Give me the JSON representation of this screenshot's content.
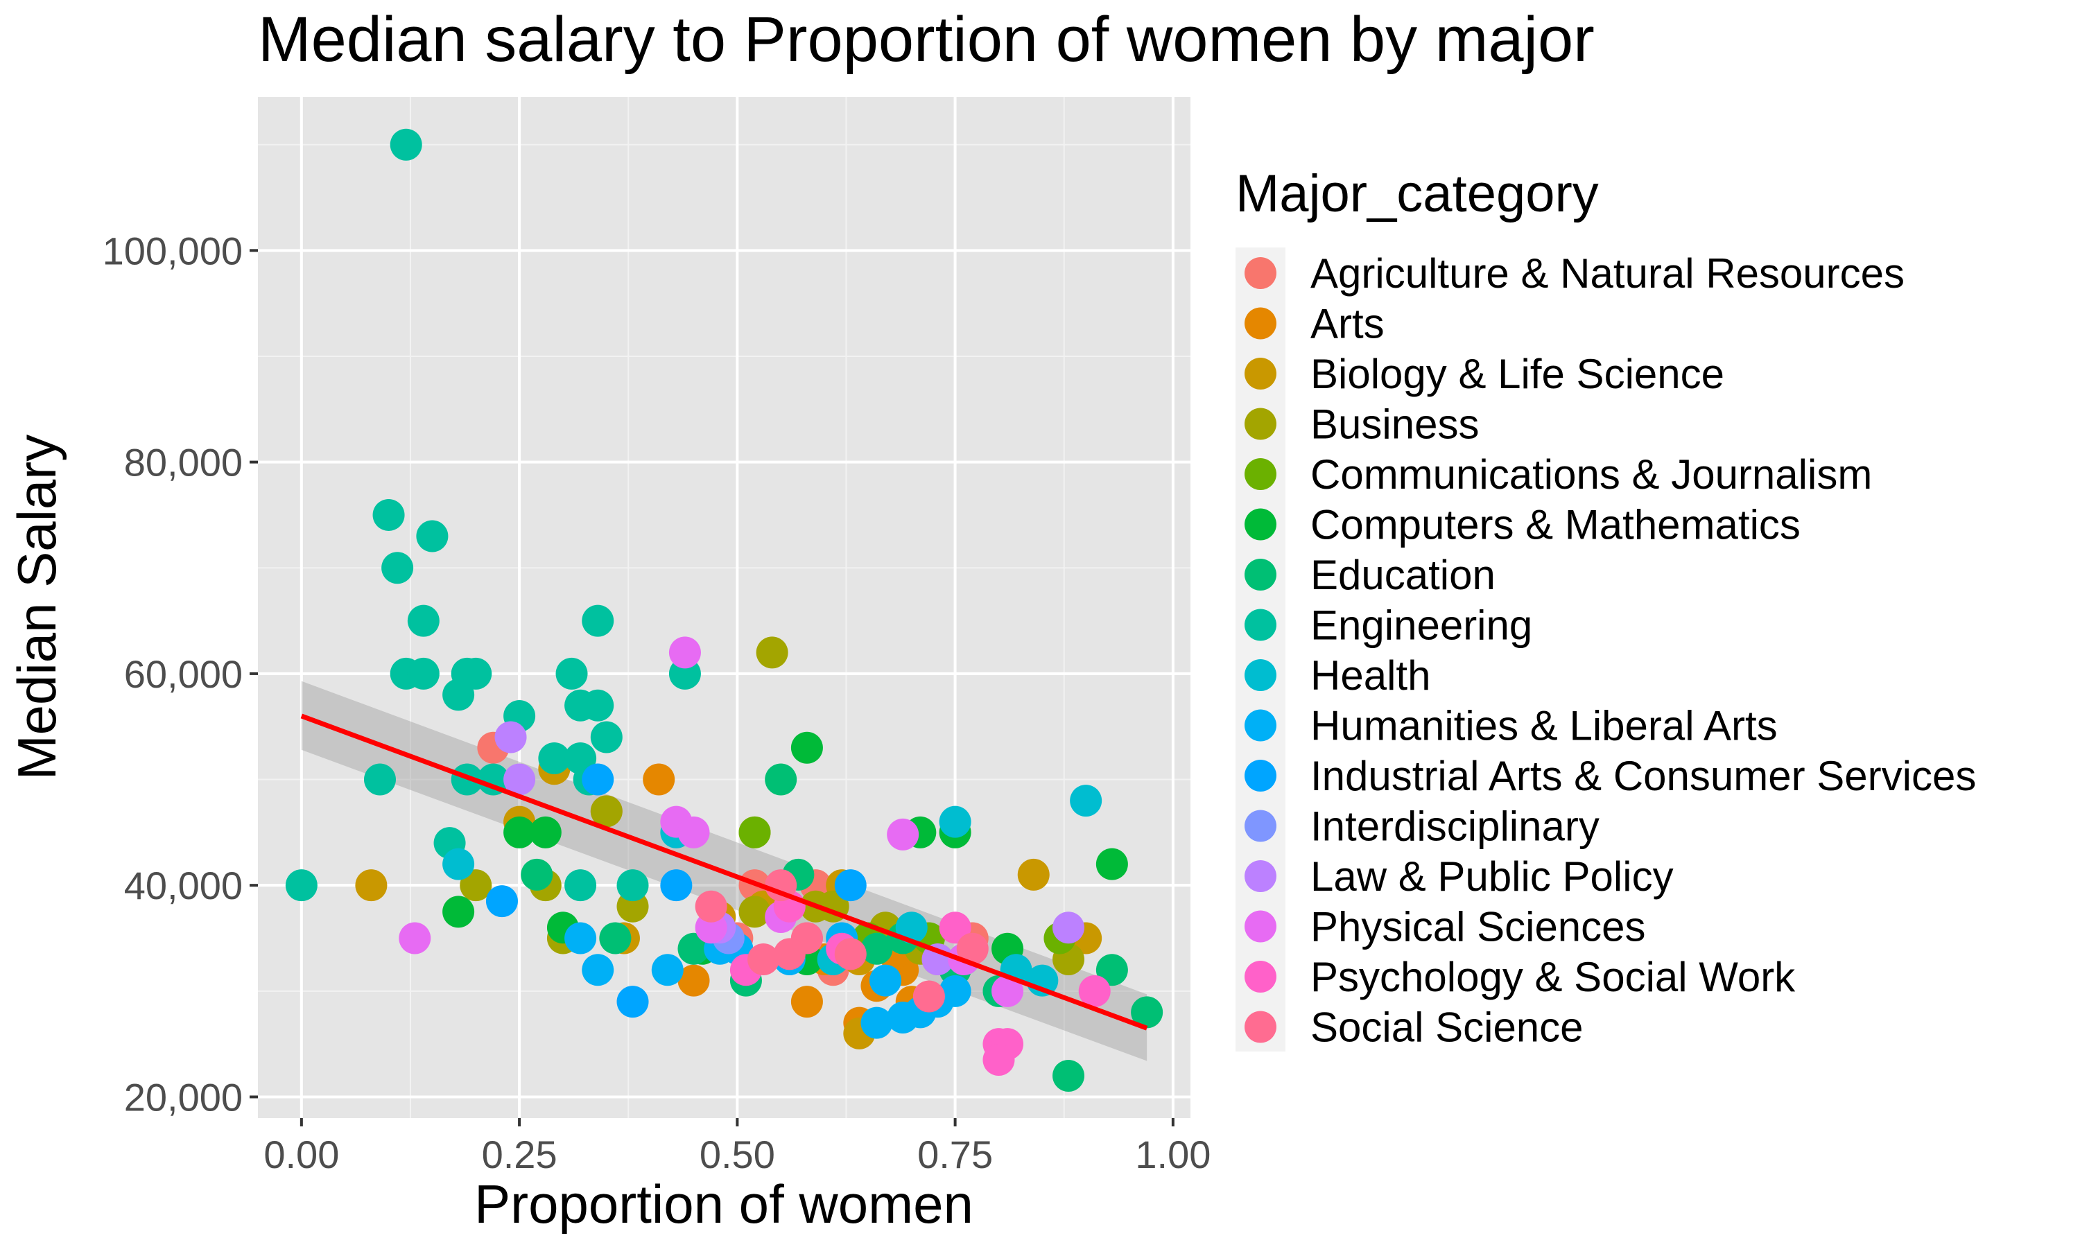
{
  "chart_data": {
    "type": "scatter",
    "title": "Median salary to Proportion of women by major",
    "xlabel": "Proportion of women",
    "ylabel": "Median Salary",
    "xlim": [
      -0.05,
      1.02
    ],
    "ylim": [
      18000,
      114500
    ],
    "x_ticks": [
      0,
      0.25,
      0.5,
      0.75,
      1.0
    ],
    "x_tick_labels": [
      "0.00",
      "0.25",
      "0.50",
      "0.75",
      "1.00"
    ],
    "y_ticks": [
      20000,
      40000,
      60000,
      80000,
      100000
    ],
    "y_tick_labels": [
      "20,000",
      "40,000",
      "60,000",
      "80,000",
      "100,000"
    ],
    "grid": true,
    "panel_background": "#e5e5e5",
    "legend": {
      "title": "Major_category",
      "placement": "right"
    },
    "series": [
      {
        "name": "Agriculture & Natural Resources",
        "color": "#F8766D",
        "points": [
          [
            0.22,
            53000
          ],
          [
            0.52,
            40000
          ],
          [
            0.59,
            40000
          ],
          [
            0.58,
            35000
          ],
          [
            0.73,
            33000
          ],
          [
            0.61,
            32000
          ],
          [
            0.77,
            35000
          ],
          [
            0.35,
            47000
          ],
          [
            0.5,
            35000
          ]
        ]
      },
      {
        "name": "Arts",
        "color": "#E58700",
        "points": [
          [
            0.41,
            50000
          ],
          [
            0.45,
            31000
          ],
          [
            0.58,
            29000
          ],
          [
            0.64,
            27000
          ],
          [
            0.66,
            30500
          ],
          [
            0.69,
            32000
          ],
          [
            0.7,
            29000
          ],
          [
            0.6,
            33000
          ],
          [
            0.68,
            33500
          ]
        ]
      },
      {
        "name": "Biology & Life Science",
        "color": "#C99800",
        "points": [
          [
            0.08,
            40000
          ],
          [
            0.37,
            35000
          ],
          [
            0.52,
            45000
          ],
          [
            0.62,
            40000
          ],
          [
            0.64,
            33000
          ],
          [
            0.84,
            41000
          ],
          [
            0.9,
            35000
          ],
          [
            0.53,
            38000
          ],
          [
            0.48,
            37000
          ],
          [
            0.64,
            26000
          ],
          [
            0.25,
            46000
          ],
          [
            0.29,
            51000
          ]
        ]
      },
      {
        "name": "Business",
        "color": "#A3A500",
        "points": [
          [
            0.54,
            62000
          ],
          [
            0.35,
            47000
          ],
          [
            0.38,
            38000
          ],
          [
            0.2,
            40000
          ],
          [
            0.28,
            40000
          ],
          [
            0.59,
            38000
          ],
          [
            0.67,
            36000
          ],
          [
            0.71,
            34000
          ],
          [
            0.88,
            33000
          ],
          [
            0.52,
            37500
          ],
          [
            0.61,
            38000
          ],
          [
            0.3,
            35000
          ],
          [
            0.48,
            35500
          ]
        ]
      },
      {
        "name": "Communications & Journalism",
        "color": "#6BB100",
        "points": [
          [
            0.52,
            45000
          ],
          [
            0.65,
            35000
          ],
          [
            0.72,
            35000
          ],
          [
            0.87,
            35000
          ]
        ]
      },
      {
        "name": "Computers & Mathematics",
        "color": "#00BA38",
        "points": [
          [
            0.58,
            53000
          ],
          [
            0.71,
            45000
          ],
          [
            0.75,
            45000
          ],
          [
            0.93,
            42000
          ],
          [
            0.18,
            37500
          ],
          [
            0.3,
            36000
          ],
          [
            0.46,
            34000
          ],
          [
            0.58,
            33000
          ],
          [
            0.81,
            34000
          ],
          [
            0.25,
            45000
          ],
          [
            0.28,
            45000
          ]
        ]
      },
      {
        "name": "Education",
        "color": "#00BF74",
        "points": [
          [
            0.27,
            41000
          ],
          [
            0.36,
            35000
          ],
          [
            0.45,
            34000
          ],
          [
            0.51,
            31000
          ],
          [
            0.57,
            41000
          ],
          [
            0.66,
            34000
          ],
          [
            0.75,
            32000
          ],
          [
            0.8,
            30000
          ],
          [
            0.88,
            22000
          ],
          [
            0.93,
            32000
          ],
          [
            0.97,
            28000
          ],
          [
            0.55,
            50000
          ],
          [
            0.69,
            35000
          ]
        ]
      },
      {
        "name": "Engineering",
        "color": "#00C19F",
        "points": [
          [
            0.12,
            110000
          ],
          [
            0.1,
            75000
          ],
          [
            0.11,
            70000
          ],
          [
            0.15,
            73000
          ],
          [
            0.14,
            65000
          ],
          [
            0.34,
            65000
          ],
          [
            0.12,
            60000
          ],
          [
            0.14,
            60000
          ],
          [
            0.19,
            60000
          ],
          [
            0.2,
            60000
          ],
          [
            0.31,
            60000
          ],
          [
            0.44,
            60000
          ],
          [
            0.18,
            58000
          ],
          [
            0.32,
            57000
          ],
          [
            0.34,
            57000
          ],
          [
            0.25,
            56000
          ],
          [
            0.35,
            54000
          ],
          [
            0.29,
            52000
          ],
          [
            0.32,
            52000
          ],
          [
            0.33,
            50000
          ],
          [
            0.09,
            50000
          ],
          [
            0.19,
            50000
          ],
          [
            0.17,
            44000
          ],
          [
            0.32,
            40000
          ],
          [
            0.0,
            40000
          ],
          [
            0.38,
            40000
          ],
          [
            0.22,
            50000
          ]
        ]
      },
      {
        "name": "Health",
        "color": "#00BDD0",
        "points": [
          [
            0.9,
            48000
          ],
          [
            0.75,
            46000
          ],
          [
            0.18,
            42000
          ],
          [
            0.43,
            45000
          ],
          [
            0.7,
            36000
          ],
          [
            0.76,
            33000
          ],
          [
            0.82,
            32000
          ],
          [
            0.85,
            31000
          ],
          [
            0.61,
            33000
          ]
        ]
      },
      {
        "name": "Humanities & Liberal Arts",
        "color": "#00B0F6",
        "points": [
          [
            0.32,
            35000
          ],
          [
            0.34,
            32000
          ],
          [
            0.42,
            32000
          ],
          [
            0.48,
            34000
          ],
          [
            0.62,
            35000
          ],
          [
            0.66,
            27000
          ],
          [
            0.69,
            27500
          ],
          [
            0.71,
            28000
          ],
          [
            0.73,
            29000
          ],
          [
            0.75,
            30000
          ],
          [
            0.56,
            33000
          ],
          [
            0.5,
            34000
          ],
          [
            0.67,
            31000
          ]
        ]
      },
      {
        "name": "Industrial Arts & Consumer Services",
        "color": "#00A5FF",
        "points": [
          [
            0.34,
            50000
          ],
          [
            0.23,
            38500
          ],
          [
            0.38,
            29000
          ],
          [
            0.43,
            40000
          ],
          [
            0.63,
            40000
          ]
        ]
      },
      {
        "name": "Interdisciplinary",
        "color": "#7F96FF",
        "points": [
          [
            0.49,
            35000
          ]
        ]
      },
      {
        "name": "Law & Public Policy",
        "color": "#BC81FF",
        "points": [
          [
            0.24,
            54000
          ],
          [
            0.25,
            50000
          ],
          [
            0.48,
            36000
          ],
          [
            0.73,
            33000
          ],
          [
            0.88,
            36000
          ]
        ]
      },
      {
        "name": "Physical Sciences",
        "color": "#E76BF3",
        "points": [
          [
            0.44,
            62000
          ],
          [
            0.43,
            46000
          ],
          [
            0.45,
            45000
          ],
          [
            0.69,
            44800
          ],
          [
            0.13,
            35000
          ],
          [
            0.47,
            36000
          ],
          [
            0.55,
            37000
          ],
          [
            0.76,
            33000
          ],
          [
            0.81,
            30000
          ]
        ]
      },
      {
        "name": "Psychology & Social Work",
        "color": "#FF61C9",
        "points": [
          [
            0.8,
            25000
          ],
          [
            0.81,
            25000
          ],
          [
            0.8,
            23500
          ],
          [
            0.75,
            36000
          ],
          [
            0.56,
            38000
          ],
          [
            0.62,
            34000
          ],
          [
            0.91,
            30000
          ],
          [
            0.51,
            32000
          ]
        ]
      },
      {
        "name": "Social Science",
        "color": "#FF6C91",
        "points": [
          [
            0.47,
            38000
          ],
          [
            0.53,
            33000
          ],
          [
            0.55,
            40000
          ],
          [
            0.58,
            35000
          ],
          [
            0.63,
            33500
          ],
          [
            0.72,
            29500
          ],
          [
            0.77,
            34000
          ],
          [
            0.56,
            33500
          ]
        ]
      }
    ],
    "trend_line": {
      "method": "lm",
      "color": "#ff0000",
      "x": [
        0.0,
        0.97
      ],
      "y": [
        56000,
        26500
      ],
      "ci_lower": [
        52800,
        23400
      ],
      "ci_upper": [
        59300,
        29700
      ]
    }
  }
}
